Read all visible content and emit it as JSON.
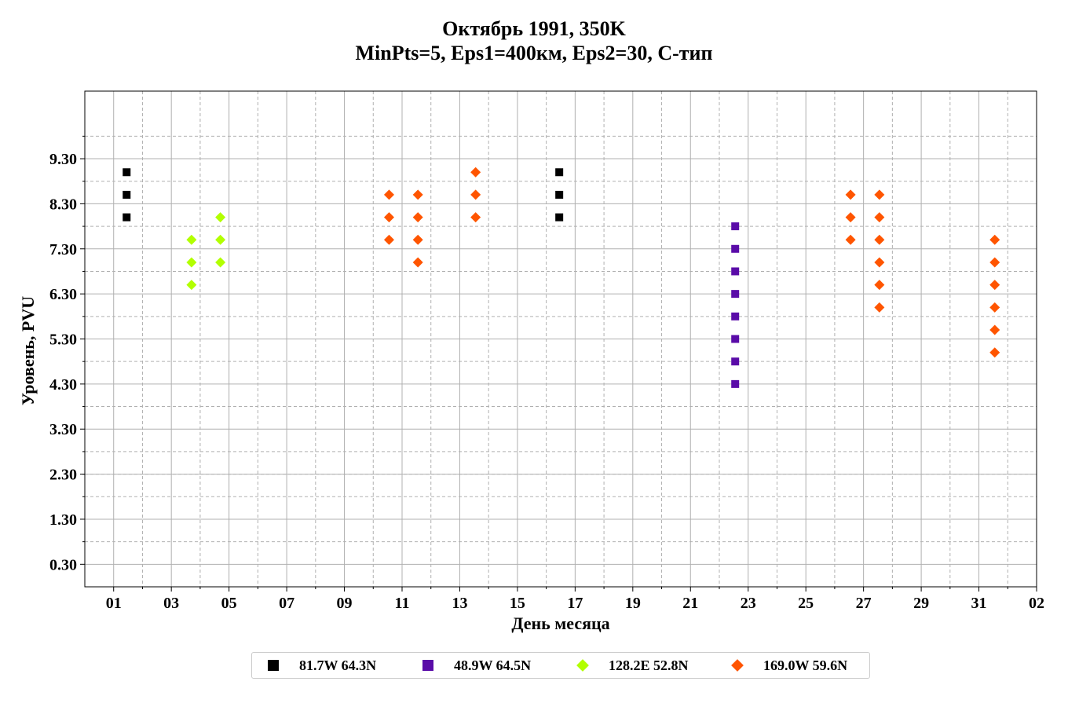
{
  "chart_data": {
    "type": "scatter",
    "title": "Октябрь 1991, 350K",
    "subtitle": "MinPts=5, Eps1=400км, Eps2=30, С-тип",
    "xlabel": "День месяца",
    "ylabel": "Уровень, PVU",
    "x_ticks": [
      "01",
      "03",
      "05",
      "07",
      "09",
      "11",
      "13",
      "15",
      "17",
      "19",
      "21",
      "23",
      "25",
      "27",
      "29",
      "31",
      "02"
    ],
    "y_ticks": [
      "0.30",
      "1.30",
      "2.30",
      "3.30",
      "4.30",
      "5.30",
      "6.30",
      "7.30",
      "8.30",
      "9.30"
    ],
    "xlim": [
      0.0,
      33.0
    ],
    "ylim": [
      -0.2,
      10.8
    ],
    "grid": true,
    "legend_position": "bottom-center",
    "series": [
      {
        "name": "81.7W 64.3N",
        "marker": "square",
        "color": "#000000",
        "points": [
          [
            1.45,
            9.0
          ],
          [
            1.45,
            8.5
          ],
          [
            1.45,
            8.0
          ],
          [
            16.45,
            9.0
          ],
          [
            16.45,
            8.5
          ],
          [
            16.45,
            8.0
          ]
        ]
      },
      {
        "name": "48.9W 64.5N",
        "marker": "square",
        "color": "#5a0ca8",
        "points": [
          [
            22.55,
            7.8
          ],
          [
            22.55,
            7.3
          ],
          [
            22.55,
            6.8
          ],
          [
            22.55,
            6.3
          ],
          [
            22.55,
            5.8
          ],
          [
            22.55,
            5.3
          ],
          [
            22.55,
            4.8
          ],
          [
            22.55,
            4.3
          ]
        ]
      },
      {
        "name": "128.2E 52.8N",
        "marker": "diamond",
        "color": "#b2ff00",
        "points": [
          [
            3.7,
            7.5
          ],
          [
            3.7,
            7.0
          ],
          [
            3.7,
            6.5
          ],
          [
            4.7,
            8.0
          ],
          [
            4.7,
            7.5
          ],
          [
            4.7,
            7.0
          ]
        ]
      },
      {
        "name": "169.0W 59.6N",
        "marker": "diamond",
        "color": "#ff5500",
        "points": [
          [
            10.55,
            8.5
          ],
          [
            10.55,
            8.0
          ],
          [
            10.55,
            7.5
          ],
          [
            11.55,
            8.5
          ],
          [
            11.55,
            8.0
          ],
          [
            11.55,
            7.5
          ],
          [
            11.55,
            7.0
          ],
          [
            13.55,
            9.0
          ],
          [
            13.55,
            8.5
          ],
          [
            13.55,
            8.0
          ],
          [
            26.55,
            8.5
          ],
          [
            26.55,
            8.0
          ],
          [
            26.55,
            7.5
          ],
          [
            27.55,
            8.5
          ],
          [
            27.55,
            8.0
          ],
          [
            27.55,
            7.5
          ],
          [
            27.55,
            7.0
          ],
          [
            27.55,
            6.5
          ],
          [
            27.55,
            6.0
          ],
          [
            31.55,
            7.5
          ],
          [
            31.55,
            7.0
          ],
          [
            31.55,
            6.5
          ],
          [
            31.55,
            6.0
          ],
          [
            31.55,
            5.5
          ],
          [
            31.55,
            5.0
          ]
        ]
      }
    ]
  }
}
